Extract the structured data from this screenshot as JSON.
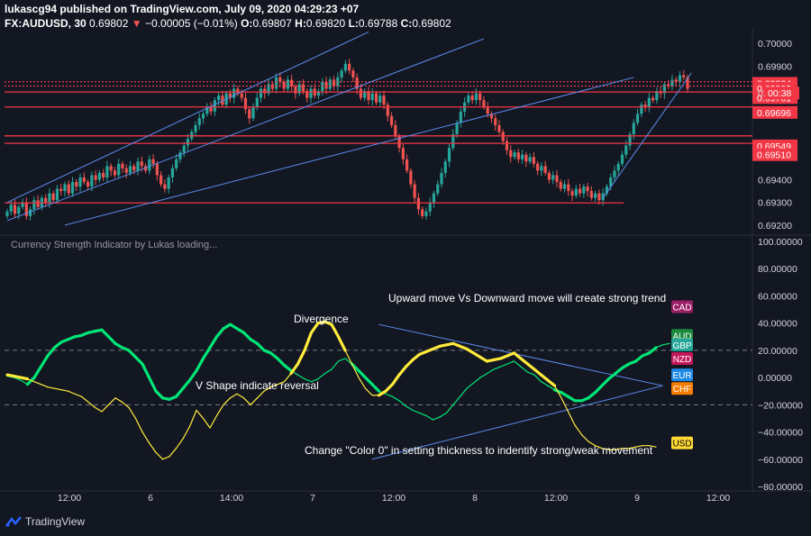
{
  "header": {
    "line1": "lukascg94 published on TradingView.com, July 09, 2020 04:29:23 +07",
    "symbol": "FX:AUDUSD, 30",
    "last": "0.69802",
    "change_arrow": "▼",
    "change": "−0.00005 (−0.01%)",
    "o_label": "O:",
    "o": "0.69807",
    "h_label": "H:",
    "h": "0.69820",
    "l_label": "L:",
    "l": "0.69788",
    "c_label": "C:",
    "c": "0.69802"
  },
  "watermark": "TradingView",
  "indicator_title": "Currency Strength Indicator by Lukas loading...",
  "annotations": {
    "divergence": "Divergence",
    "v_shape": "V Shape indicate reversal",
    "upward": "Upward move Vs Downward move will create strong trend",
    "color0": "Change \"Color 0\" in setting thickness to indentify strong/weak movement"
  },
  "colors": {
    "background": "#131722",
    "up": "#26a69a",
    "down": "#ef5350",
    "channel": "#5b8def",
    "level": "#f23645",
    "strong": "#00e676",
    "weak": "#ffeb3b"
  },
  "chart_data": [
    {
      "type": "candlestick",
      "symbol": "FX:AUDUSD",
      "timeframe": "30",
      "ylim": [
        0.6918,
        0.7004
      ],
      "y_ticks": [
        "0.70000",
        "0.69900",
        "0.69400",
        "0.69300",
        "0.69200"
      ],
      "x_ticks": [
        "12:00",
        "6",
        "14:00",
        "7",
        "12:00",
        "8",
        "12:00",
        "9",
        "12:00"
      ],
      "closes": [
        0.6926,
        0.6929,
        0.6925,
        0.6928,
        0.693,
        0.6924,
        0.6927,
        0.6931,
        0.6928,
        0.6932,
        0.693,
        0.6934,
        0.6931,
        0.6936,
        0.6935,
        0.6938,
        0.6934,
        0.6939,
        0.6937,
        0.6941,
        0.6939,
        0.6937,
        0.6942,
        0.694,
        0.6943,
        0.6941,
        0.6946,
        0.6944,
        0.6942,
        0.6947,
        0.6945,
        0.6943,
        0.6946,
        0.6944,
        0.6948,
        0.6946,
        0.6944,
        0.6949,
        0.6947,
        0.6942,
        0.6938,
        0.6936,
        0.6941,
        0.6945,
        0.6949,
        0.6952,
        0.6955,
        0.6958,
        0.6961,
        0.6964,
        0.6967,
        0.6969,
        0.6972,
        0.697,
        0.6975,
        0.6977,
        0.6973,
        0.6978,
        0.6976,
        0.698,
        0.6978,
        0.6976,
        0.6971,
        0.6967,
        0.6972,
        0.6976,
        0.698,
        0.6978,
        0.6982,
        0.698,
        0.6985,
        0.6983,
        0.698,
        0.6984,
        0.6981,
        0.6978,
        0.6982,
        0.6979,
        0.6976,
        0.698,
        0.6977,
        0.6979,
        0.6983,
        0.698,
        0.6984,
        0.6981,
        0.6985,
        0.6988,
        0.6991,
        0.6988,
        0.6985,
        0.698,
        0.6976,
        0.6979,
        0.6975,
        0.6978,
        0.6974,
        0.6977,
        0.6973,
        0.6968,
        0.6964,
        0.6959,
        0.6954,
        0.6949,
        0.6944,
        0.6938,
        0.6932,
        0.6927,
        0.6924,
        0.6926,
        0.693,
        0.6934,
        0.6938,
        0.6943,
        0.6948,
        0.6954,
        0.696,
        0.6965,
        0.697,
        0.6974,
        0.6977,
        0.6975,
        0.6978,
        0.6975,
        0.6972,
        0.6969,
        0.6967,
        0.6964,
        0.6961,
        0.6957,
        0.6953,
        0.695,
        0.6952,
        0.6949,
        0.6951,
        0.6948,
        0.695,
        0.6947,
        0.6944,
        0.6946,
        0.6943,
        0.694,
        0.6942,
        0.6939,
        0.6936,
        0.6938,
        0.6935,
        0.6933,
        0.6936,
        0.6934,
        0.6937,
        0.6935,
        0.6932,
        0.6934,
        0.6931,
        0.6934,
        0.6937,
        0.6941,
        0.6944,
        0.6947,
        0.6951,
        0.6955,
        0.696,
        0.6965,
        0.6969,
        0.6973,
        0.6972,
        0.6976,
        0.6975,
        0.6979,
        0.6978,
        0.6982,
        0.6981,
        0.6984,
        0.6983,
        0.6986,
        0.6985,
        0.698
      ],
      "price_labels": [
        "0.69824",
        "0.69802",
        "0.69761",
        "0.69696",
        "0.69549",
        "0.69510"
      ],
      "price_label_values": [
        0.69824,
        0.69802,
        0.69761,
        0.69696,
        0.69549,
        0.6951
      ],
      "countdown_label": "00:38",
      "countdown_prefix": "0.",
      "horizontal_levels": [
        0.69831,
        0.69812,
        0.69786,
        0.6972,
        0.69593,
        0.6956,
        0.69298
      ],
      "channel_lines": [
        {
          "from": [
            0,
            0.693
          ],
          "to": [
            94,
            0.7005
          ]
        },
        {
          "from": [
            0,
            0.6922
          ],
          "to": [
            124,
            0.7002
          ]
        },
        {
          "from": [
            15,
            0.692
          ],
          "to": [
            163,
            0.6985
          ]
        },
        {
          "from": [
            155,
            0.6932
          ],
          "to": [
            178,
            0.6987
          ]
        }
      ]
    },
    {
      "type": "line",
      "title": "Currency Strength Indicator by Lukas loading...",
      "ylim": [
        -80,
        100
      ],
      "y_ticks": [
        "100.00000",
        "80.00000",
        "60.00000",
        "40.00000",
        "20.00000",
        "0.00000",
        "−20.00000",
        "−40.00000",
        "−60.00000",
        "−80.00000"
      ],
      "series": [
        {
          "name": "AUD",
          "color": "#00e676",
          "values": [
            1,
            0,
            -2,
            -5,
            0,
            8,
            16,
            22,
            26,
            28,
            30,
            31,
            33,
            34,
            35,
            30,
            25,
            22,
            20,
            15,
            10,
            0,
            -10,
            -15,
            -16,
            -14,
            -8,
            -2,
            5,
            14,
            22,
            30,
            36,
            39,
            36,
            33,
            28,
            25,
            20,
            18,
            14,
            9,
            5,
            2,
            -1,
            -3,
            -1,
            3,
            6,
            12,
            14,
            10,
            5,
            0,
            -5,
            -10,
            -12,
            -14,
            -17,
            -21,
            -24,
            -26,
            -28,
            -31,
            -29,
            -26,
            -20,
            -14,
            -8,
            -4,
            0,
            3,
            6,
            8,
            10,
            12,
            8,
            4,
            2,
            -3,
            -6,
            -9,
            -11,
            -14,
            -17,
            -17,
            -15,
            -11,
            -6,
            -1,
            3,
            7,
            10,
            12,
            16,
            18,
            22,
            24,
            25
          ]
        },
        {
          "name": "USD",
          "color": "#ffeb3b",
          "values": [
            2,
            1,
            0,
            -1,
            -3,
            -5,
            -7,
            -8,
            -9,
            -10,
            -12,
            -14,
            -18,
            -22,
            -25,
            -20,
            -15,
            -18,
            -22,
            -30,
            -40,
            -48,
            -55,
            -60,
            -58,
            -52,
            -45,
            -36,
            -24,
            -30,
            -37,
            -28,
            -20,
            -15,
            -12,
            -15,
            -20,
            -15,
            -10,
            -7,
            -5,
            -3,
            3,
            10,
            20,
            33,
            40,
            41,
            39,
            30,
            20,
            10,
            0,
            -8,
            -13,
            -13,
            -10,
            -5,
            2,
            8,
            13,
            17,
            19,
            21,
            23,
            24,
            25,
            23,
            21,
            18,
            15,
            12,
            13,
            14,
            16,
            18,
            14,
            10,
            6,
            2,
            -2,
            -6,
            -15,
            -25,
            -35,
            -42,
            -47,
            -50,
            -52,
            -53,
            -53,
            -52,
            -52,
            -51,
            -50,
            -50,
            -51
          ]
        }
      ],
      "legend_tags": [
        {
          "name": "CAD",
          "color": "#9c1f66",
          "value": 52
        },
        {
          "name": "AUD",
          "color": "#1b8a3c",
          "value": 31
        },
        {
          "name": "GBP",
          "color": "#26a69a",
          "value": 24
        },
        {
          "name": "NZD",
          "color": "#c2185b",
          "value": 14
        },
        {
          "name": "EUR",
          "color": "#1e88e5",
          "value": 2
        },
        {
          "name": "CHF",
          "color": "#f57c00",
          "value": -8
        },
        {
          "name": "USD",
          "color": "#fdd835",
          "value": -48
        }
      ],
      "reference_lines": [
        20,
        -20
      ],
      "divergence_lines": [
        {
          "from": [
            55,
            39
          ],
          "to": [
            97,
            -6
          ]
        },
        {
          "from": [
            54,
            -60
          ],
          "to": [
            97,
            -6
          ]
        }
      ]
    }
  ]
}
